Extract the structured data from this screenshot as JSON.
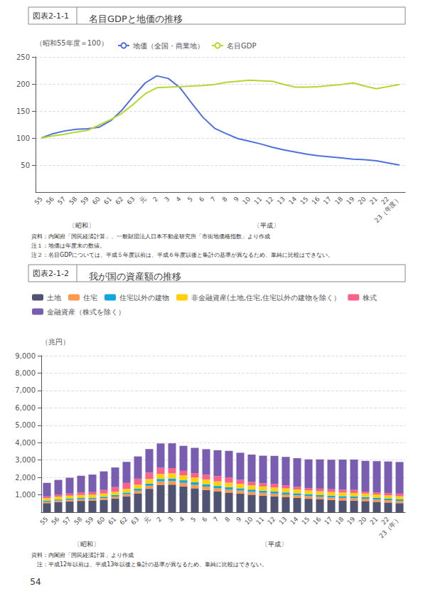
{
  "chart_data": [
    {
      "type": "line",
      "figure_label": "図表2-1-1",
      "title": "名目GDPと地価の推移",
      "y_label": "（昭和55年度＝100）",
      "categories": [
        "55",
        "56",
        "57",
        "58",
        "59",
        "60",
        "61",
        "62",
        "63",
        "元",
        "2",
        "3",
        "4",
        "5",
        "6",
        "7",
        "8",
        "9",
        "10",
        "11",
        "12",
        "13",
        "14",
        "15",
        "16",
        "17",
        "18",
        "19",
        "20",
        "21",
        "22",
        "23（年度）"
      ],
      "series": [
        {
          "name": "地価（全国・商業地）",
          "values": [
            100,
            108,
            113,
            116,
            117,
            120,
            132,
            152,
            178,
            202,
            215,
            210,
            193,
            165,
            138,
            118,
            108,
            99,
            94,
            89,
            83,
            78,
            74,
            70,
            67,
            65,
            63,
            61,
            60,
            58,
            54,
            50
          ]
        },
        {
          "name": "名目GDP",
          "values": [
            100,
            104,
            107,
            111,
            114,
            124,
            134,
            146,
            163,
            182,
            193,
            194,
            195,
            196,
            197,
            199,
            203,
            205,
            207,
            206,
            205,
            199,
            194,
            194,
            195,
            197,
            199,
            202,
            196,
            191,
            195,
            199
          ]
        }
      ],
      "ylim": [
        0,
        250
      ],
      "yticks": [
        50,
        100,
        150,
        200,
        250
      ],
      "grid": true,
      "legend": "upper left",
      "annotations": [
        "〔昭和〕",
        "〔平成〕"
      ],
      "notes": [
        "資料：内閣府「国民経済計算」、一般財団法人日本不動産研究所「市街地価格指数」より作成",
        "注１：地価は年度末の数値。",
        "注２：名目GDPについては、平成５年度以前は、平成６年度以後と集計の基準が異なるため、単純に比較はできない。"
      ]
    },
    {
      "type": "bar",
      "stacked": true,
      "figure_label": "図表2-1-2",
      "title": "我が国の資産額の推移",
      "y_label": "（兆円）",
      "categories": [
        "55",
        "56",
        "57",
        "58",
        "59",
        "60",
        "61",
        "62",
        "63",
        "元",
        "2",
        "3",
        "4",
        "5",
        "6",
        "7",
        "8",
        "9",
        "10",
        "11",
        "12",
        "13",
        "14",
        "15",
        "16",
        "17",
        "18",
        "19",
        "20",
        "21",
        "22",
        "23（年）"
      ],
      "series": [
        {
          "name": "土地",
          "values": [
            523,
            584,
            621,
            649,
            657,
            703,
            784,
            904,
            1086,
            1345,
            1574,
            1586,
            1485,
            1374,
            1281,
            1188,
            1129,
            1067,
            1001,
            945,
            903,
            859,
            818,
            773,
            737,
            705,
            680,
            663,
            639,
            598,
            556,
            521
          ]
        },
        {
          "name": "住宅",
          "values": [
            74,
            83,
            90,
            96,
            100,
            107,
            116,
            131,
            151,
            174,
            198,
            204,
            204,
            198,
            191,
            185,
            181,
            177,
            173,
            169,
            166,
            161,
            156,
            151,
            147,
            144,
            142,
            140,
            138,
            136,
            132,
            129
          ]
        },
        {
          "name": "住宅以外の建物",
          "values": [
            55,
            61,
            67,
            71,
            74,
            79,
            85,
            95,
            110,
            126,
            142,
            148,
            148,
            145,
            140,
            136,
            133,
            130,
            127,
            124,
            121,
            117,
            114,
            110,
            107,
            105,
            103,
            102,
            100,
            97,
            94,
            91
          ]
        },
        {
          "name": "非金融資産(土地,住宅,住宅以外の建物を除く）",
          "values": [
            151,
            164,
            170,
            177,
            180,
            187,
            196,
            212,
            237,
            264,
            288,
            295,
            291,
            282,
            273,
            266,
            260,
            254,
            248,
            243,
            237,
            230,
            224,
            217,
            212,
            207,
            204,
            201,
            197,
            191,
            185,
            180
          ]
        },
        {
          "name": "株式",
          "values": [
            104,
            117,
            125,
            138,
            144,
            203,
            263,
            342,
            345,
            364,
            352,
            300,
            250,
            243,
            271,
            301,
            296,
            232,
            187,
            180,
            204,
            184,
            146,
            129,
            153,
            159,
            170,
            174,
            110,
            115,
            142,
            148
          ]
        },
        {
          "name": "金融資産（株式を除く）",
          "values": [
            779,
            849,
            909,
            967,
            1009,
            1069,
            1129,
            1209,
            1279,
            1359,
            1399,
            1429,
            1439,
            1459,
            1469,
            1489,
            1529,
            1559,
            1579,
            1589,
            1609,
            1629,
            1649,
            1659,
            1679,
            1699,
            1729,
            1749,
            1769,
            1799,
            1809,
            1819
          ]
        }
      ],
      "ylim": [
        0,
        9000
      ],
      "yticks": [
        {
          "value": 1000,
          "label": "1,000"
        },
        {
          "value": 2000,
          "label": "2,000"
        },
        {
          "value": 3000,
          "label": "3,000"
        },
        {
          "value": 4000,
          "label": "4,000"
        },
        {
          "value": 5000,
          "label": "5,000"
        },
        {
          "value": 6000,
          "label": "6,000"
        },
        {
          "value": 7000,
          "label": "7,000"
        },
        {
          "value": 8000,
          "label": "8,000"
        },
        {
          "value": 9000,
          "label": "9,000"
        }
      ],
      "grid": true,
      "legend": "upper left",
      "annotations": [
        "〔昭和〕",
        "〔平成〕"
      ],
      "notes": [
        "資料：内閣府「国民経済計算」より作成",
        "　注：平成12年以前は、平成13年以後と集計の基準が異なるため、単純に比較はできない。"
      ]
    }
  ],
  "page_number": "54"
}
